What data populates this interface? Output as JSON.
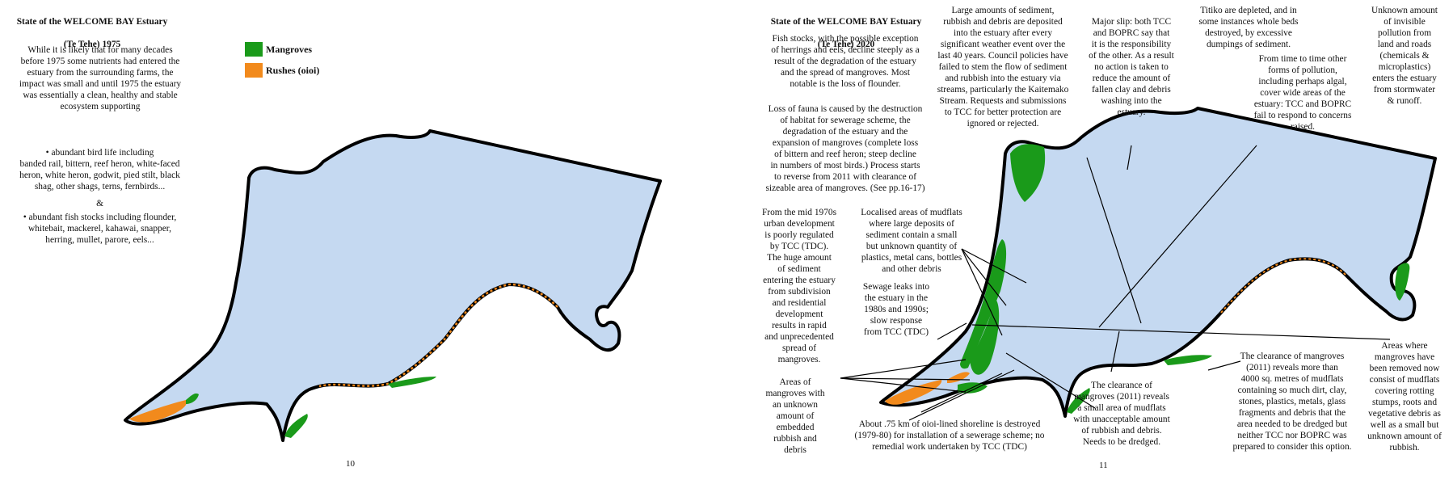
{
  "left_page": {
    "title_line1": "State of the WELCOME BAY Estuary",
    "title_line2": "(Te Tehe)  1975",
    "intro": "While it is likely that for many decades\nbefore 1975 some nutrients had entered the\nestuary from the surrounding farms, the\nimpact was small and until 1975 the estuary\nwas essentially a clean, healthy and stable\necosystem supporting",
    "bird_bullet": "•    abundant bird life including\nbanded rail, bittern, reef heron, white-faced\nheron, white heron, godwit, pied stilt, black\nshag, other shags, terns, fernbirds...",
    "ampersand": "&",
    "fish_bullet": "•    abundant fish stocks including flounder,\nwhitebait, mackerel, kahawai, snapper,\nherring, mullet, parore, eels...",
    "legend": [
      {
        "label": "Mangroves",
        "color": "#1a9a1a"
      },
      {
        "label": "Rushes (oioi)",
        "color": "#f28a1c"
      }
    ],
    "page_number": "10"
  },
  "right_page": {
    "title_line1": "State of the WELCOME BAY Estuary",
    "title_line2": "(Te Tehe)  2020",
    "page_number": "11",
    "annotations": {
      "fish_stocks": "Fish stocks, with the possible exception\nof herrings and eels, decline steeply as a\nresult of the degradation of the estuary\nand the spread of mangroves. Most\nnotable is the loss of flounder.",
      "loss_of_fauna": "Loss of fauna is caused by the destruction\nof habitat for sewerage scheme, the\ndegradation of the estuary and the\nexpansion of mangroves (complete loss\nof bittern and reef heron; steep decline\nin numbers of most birds.) Process starts\nto reverse from 2011 with clearance of\nsizeable area of mangroves. (See pp.16-17)",
      "urban_development": "From the mid 1970s\nurban development\nis poorly regulated\nby TCC (TDC).\nThe huge amount\nof sediment\nentering the estuary\nfrom subdivision\nand residential\ndevelopment\nresults in rapid\nand unprecedented\nspread of\nmangroves.",
      "embedded_rubbish": "Areas of\nmangroves with\nan unknown\namount of\nembedded\nrubbish and\ndebris",
      "sediment_deposits": "Large amounts of sediment,\nrubbish and debris are deposited\ninto the estuary after every\nsignificant weather event over the\nlast 40 years. Council policies have\nfailed to stem the flow of sediment\nand rubbish into the estuary via\nstreams, particularly the Kaitemako\nStream. Requests and submissions\nto TCC for better protection are\nignored or rejected.",
      "localised_mudflats": "Localised areas of mudflats\nwhere large deposits of\nsediment contain a small\nbut unknown quantity of\nplastics, metal cans, bottles\nand other debris",
      "sewage_leaks": "Sewage leaks into\nthe estuary in the\n1980s and 1990s;\nslow response\nfrom TCC (TDC)",
      "major_slip": "Major slip: both TCC\nand BOPRC say that\nit is the responsibility\nof the other. As a result\nno action is taken to\nreduce the amount of\nfallen clay and debris\nwashing into the\nestuary.",
      "titiko": "Titiko are depleted, and in\nsome instances whole beds\ndestroyed, by excessive\ndumpings of sediment.",
      "unknown_pollution": "Unknown amount\nof invisible\npollution from\nland and roads\n(chemicals &\nmicroplastics)\nenters the estuary\nfrom stormwater\n& runoff.",
      "algal_pollution": "From time to time other\nforms of pollution,\nincluding perhaps algal,\ncover wide areas of the\nestuary: TCC and BOPRC\nfail to respond to concerns\nraised.",
      "oioi_destroyed": "About .75 km of oioi-lined shoreline is destroyed\n(1979-80) for installation of a sewerage scheme; no\nremedial work undertaken by TCC (TDC)",
      "clearance_small": "The clearance of\nmangroves (2011) reveals\na small area of mudflats\nwith unacceptable amount\nof rubbish and debris.\nNeeds to be dredged.",
      "clearance_4000": "The clearance of mangroves\n(2011) reveals more than\n4000 sq. metres of mudflats\ncontaining so much dirt, clay,\nstones, plastics, metals, glass\nfragments and debris that the\narea needed to be dredged but\nneither TCC nor BOPRC was\nprepared to consider this option.",
      "mangroves_removed": "Areas where\nmangroves have\nbeen removed now\nconsist of mudflats\ncovering rotting\nstumps, roots and\nvegetative debris as\nwell as a small but\nunknown amount of\nrubbish."
    }
  },
  "colors": {
    "water": "#c5d9f1",
    "shore": "#000000",
    "mangroves": "#1a9a1a",
    "rushes": "#f28a1c"
  }
}
